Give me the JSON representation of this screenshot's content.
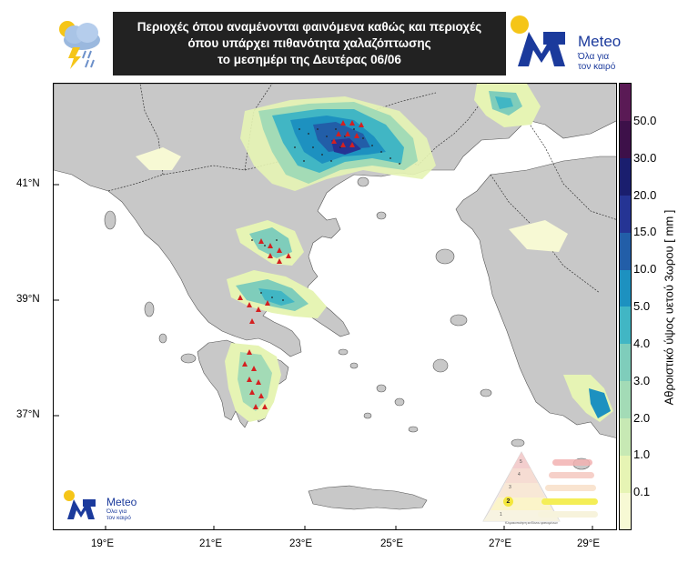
{
  "header": {
    "title_lines": [
      "Περιοχές όπου αναμένονται φαινόμενα καθώς και περιοχές",
      "όπου υπάρχει πιθανότητα χαλαζόπτωσης",
      "το μεσημέρι της Δευτέρας 06/06"
    ],
    "icon_name": "storm-cloud-icon"
  },
  "logo": {
    "name": "Meteo",
    "tagline_1": "Όλα για",
    "tagline_2": "τον καιρό"
  },
  "small_logo": {
    "name": "Meteo",
    "tagline_1": "Όλα για",
    "tagline_2": "τον καιρό"
  },
  "axes": {
    "x_ticks": [
      "19°E",
      "21°E",
      "23°E",
      "25°E",
      "27°E",
      "29°E"
    ],
    "y_ticks": [
      "41°N",
      "39°N",
      "37°N"
    ]
  },
  "colorbar": {
    "title": "Αθροιστικό ύψος υετού 3ωρου [ mm ]",
    "levels": [
      "0.1",
      "1.0",
      "2.0",
      "3.0",
      "4.0",
      "5.0",
      "10.0",
      "15.0",
      "20.0",
      "30.0",
      "50.0"
    ],
    "colors": [
      "#f7f9d4",
      "#e6f4b4",
      "#c7e9b4",
      "#a3dbb6",
      "#7fcdbb",
      "#41b6c4",
      "#1d91c0",
      "#225ea8",
      "#253494",
      "#1a1e6e",
      "#3d1049",
      "#5a1a55"
    ]
  },
  "hazard_scale": {
    "levels": [
      "1",
      "2",
      "3",
      "4",
      "5"
    ],
    "current_level": "2",
    "caption": "Κλιμακοποίηση κινδύνου φαινομένων"
  },
  "map": {
    "land_color": "#c8c8c8",
    "sea_color": "#ffffff",
    "border_color": "#333333",
    "hail_marker_color": "#d42020"
  }
}
